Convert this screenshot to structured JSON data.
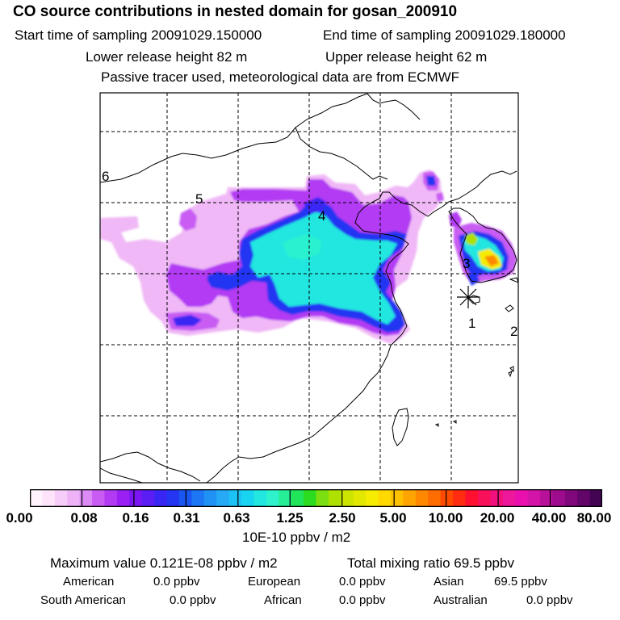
{
  "header": {
    "title": "CO  source contributions in nested domain for gosan_200910",
    "start": "Start time of sampling 20091029.150000",
    "end": "End time of sampling 20091029.180000",
    "lower": "Lower release height   82 m",
    "upper": "Upper release height   62 m",
    "passive": "Passive tracer used, meteorological data are from ECMWF"
  },
  "chart_data": {
    "type": "heatmap",
    "title": "CO  source contributions in nested domain for gosan_200910",
    "colorbar_ticks": [
      "0.00",
      "0.08",
      "0.16",
      "0.31",
      "0.63",
      "1.25",
      "2.50",
      "5.00",
      "10.00",
      "20.00",
      "40.00",
      "80.00"
    ],
    "colorbar_colors": [
      "#fff4fd",
      "#fde4fb",
      "#f6ccf8",
      "#eeb3f6",
      "#dc8af5",
      "#c85cf3",
      "#b23af3",
      "#9a1ff3",
      "#7a16f4",
      "#5a1ef4",
      "#3a26f4",
      "#2436f2",
      "#1a56f2",
      "#1d76f4",
      "#2192f5",
      "#27aaf6",
      "#1cc2f6",
      "#18d4f0",
      "#22e6e0",
      "#2ef2cc",
      "#26ee96",
      "#20e45a",
      "#2cdc20",
      "#7ade10",
      "#aee000",
      "#cce400",
      "#e2e800",
      "#f6ec00",
      "#ffd900",
      "#ffc000",
      "#ffa400",
      "#ff8800",
      "#ff6c00",
      "#ff4a00",
      "#ff2c10",
      "#ff1030",
      "#f8105a",
      "#f2107c",
      "#ee189c",
      "#ea10b0",
      "#d414a8",
      "#b8129a",
      "#9c0c8c",
      "#80087c",
      "#62066a",
      "#440454"
    ],
    "unit": "10E-10 ppbv / m2",
    "max_value": "0.121E-08",
    "markers": [
      "1",
      "2",
      "3",
      "4",
      "5",
      "6"
    ]
  },
  "stats": {
    "max_label": "Maximum value  0.121E-08 ppbv / m2",
    "total_label": "Total mixing ratio       69.5 ppbv",
    "regions": [
      {
        "name": "American",
        "value": "0.0 ppbv"
      },
      {
        "name": "European",
        "value": "0.0 ppbv"
      },
      {
        "name": "Asian",
        "value": "69.5 ppbv"
      },
      {
        "name": "South American",
        "value": "0.0 ppbv"
      },
      {
        "name": "African",
        "value": "0.0 ppbv"
      },
      {
        "name": "Australian",
        "value": "0.0 ppbv"
      }
    ]
  }
}
